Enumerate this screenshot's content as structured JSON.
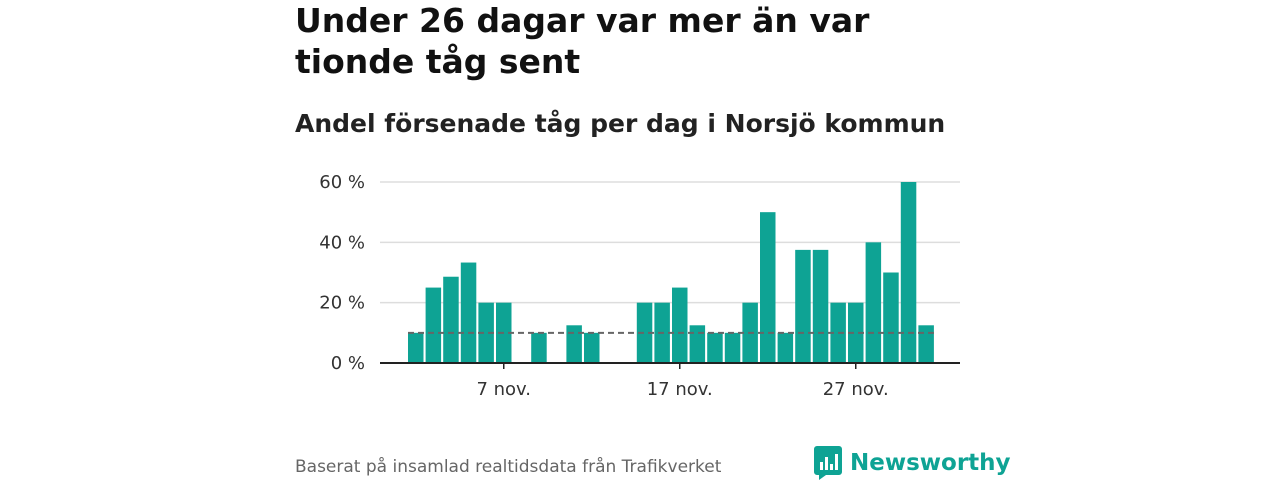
{
  "title": "Under 26 dagar var mer än var tionde tåg sent",
  "subtitle": "Andel försenade tåg per dag i Norsjö kommun",
  "footer": {
    "source": "Baserat på insamlad realtidsdata från Trafikverket"
  },
  "brand": {
    "name": "Newsworthy"
  },
  "colors": {
    "bar": "#0ea394",
    "reference_line": "#666666",
    "grid": "#dddddd",
    "axis": "#222222",
    "brand": "#0ea394"
  },
  "chart_data": {
    "type": "bar",
    "title": "Andel försenade tåg per dag i Norsjö kommun",
    "xlabel": "",
    "ylabel": "",
    "ylim": [
      0,
      60
    ],
    "yticks": [
      0,
      20,
      40,
      60
    ],
    "ytick_labels": [
      "0 %",
      "20 %",
      "40 %",
      "60 %"
    ],
    "reference_line": {
      "value": 10,
      "style": "dashed"
    },
    "categories": [
      "2 nov.",
      "3 nov.",
      "4 nov.",
      "5 nov.",
      "6 nov.",
      "7 nov.",
      "8 nov.",
      "9 nov.",
      "10 nov.",
      "11 nov.",
      "12 nov.",
      "13 nov.",
      "14 nov.",
      "15 nov.",
      "16 nov.",
      "17 nov.",
      "18 nov.",
      "19 nov.",
      "20 nov.",
      "21 nov.",
      "22 nov.",
      "23 nov.",
      "24 nov.",
      "25 nov.",
      "26 nov.",
      "27 nov.",
      "28 nov.",
      "29 nov.",
      "30 nov.",
      "1 dec."
    ],
    "values": [
      10,
      25,
      28.6,
      33.3,
      20,
      20,
      0,
      10,
      0,
      12.5,
      10,
      0,
      0,
      20,
      20,
      25,
      12.5,
      10,
      10,
      20,
      50,
      10,
      37.5,
      37.5,
      20,
      20,
      40,
      30,
      60,
      12.5
    ],
    "xtick_labels": [
      {
        "category": "7 nov.",
        "label": "7 nov."
      },
      {
        "category": "17 nov.",
        "label": "17 nov."
      },
      {
        "category": "27 nov.",
        "label": "27 nov."
      }
    ]
  }
}
